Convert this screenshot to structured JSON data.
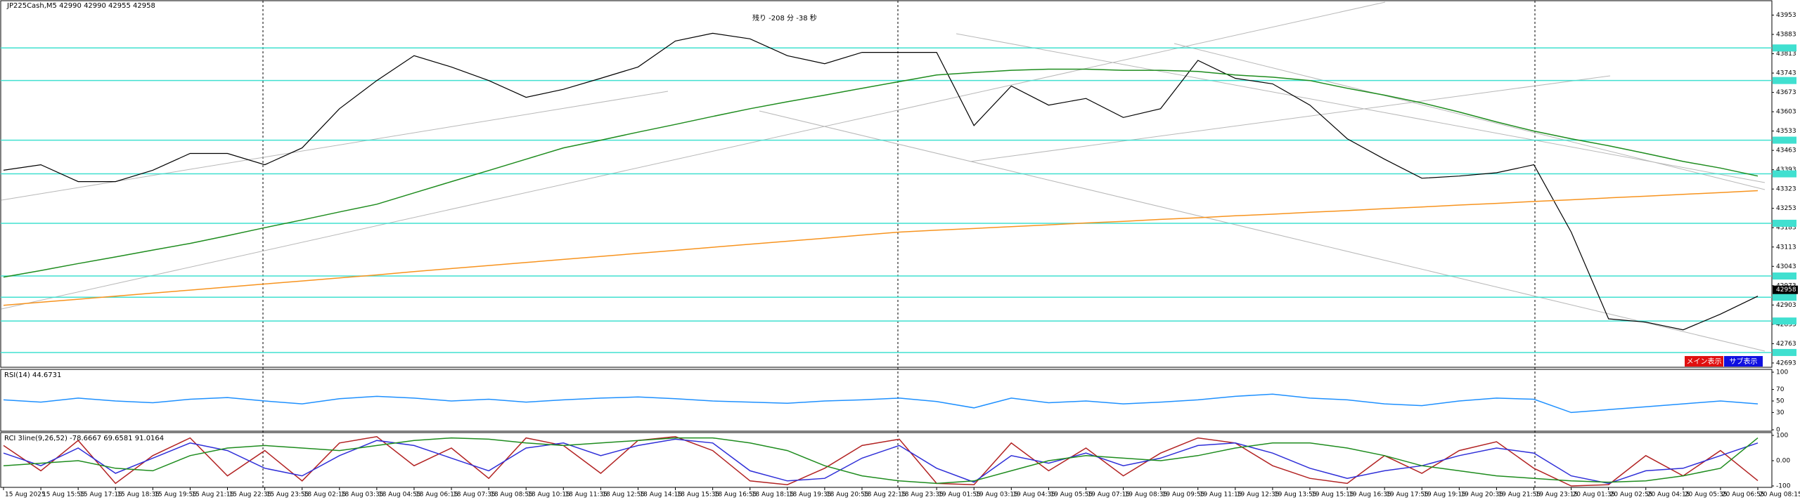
{
  "chart_data": [
    {
      "type": "line",
      "title": "JP225Cash,M5  42990 42990 42955 42958",
      "countdown": "残り -208 分 -38 秒",
      "categories": [
        "15 Aug 2025",
        "15 Aug 15:55",
        "15 Aug 17:15",
        "15 Aug 18:35",
        "15 Aug 19:55",
        "15 Aug 21:15",
        "15 Aug 22:35",
        "15 Aug 23:55",
        "18 Aug 02:15",
        "18 Aug 03:35",
        "18 Aug 04:55",
        "18 Aug 06:15",
        "18 Aug 07:35",
        "18 Aug 08:55",
        "18 Aug 10:15",
        "18 Aug 11:35",
        "18 Aug 12:55",
        "18 Aug 14:15",
        "18 Aug 15:35",
        "18 Aug 16:55",
        "18 Aug 18:15",
        "18 Aug 19:35",
        "18 Aug 20:55",
        "18 Aug 22:15",
        "18 Aug 23:35",
        "19 Aug 01:55",
        "19 Aug 03:15",
        "19 Aug 04:35",
        "19 Aug 05:55",
        "19 Aug 07:15",
        "19 Aug 08:35",
        "19 Aug 09:55",
        "19 Aug 11:15",
        "19 Aug 12:35",
        "19 Aug 13:55",
        "19 Aug 15:15",
        "19 Aug 16:35",
        "19 Aug 17:55",
        "19 Aug 19:15",
        "19 Aug 20:35",
        "19 Aug 21:55",
        "19 Aug 23:15",
        "20 Aug 01:35",
        "20 Aug 02:55",
        "20 Aug 04:15",
        "20 Aug 05:35",
        "20 Aug 06:55",
        "20 Aug 08:15"
      ],
      "series": [
        {
          "color": "#000000",
          "values": [
            43391,
            43411,
            43350,
            43350,
            43391,
            43452,
            43452,
            43411,
            43472,
            43614,
            43716,
            43806,
            43765,
            43716,
            43655,
            43684,
            43724,
            43765,
            43859,
            43887,
            43867,
            43806,
            43777,
            43818,
            43818,
            43818,
            43553,
            43696,
            43627,
            43651,
            43582,
            43614,
            43789,
            43724,
            43704,
            43627,
            43505,
            43431,
            43362,
            43370,
            43382,
            43411,
            43167,
            42853,
            42841,
            42813,
            42870,
            42935
          ]
        },
        {
          "color": "#1e8c1e",
          "values": [
            43004,
            43028,
            43053,
            43077,
            43102,
            43126,
            43154,
            43183,
            43211,
            43240,
            43268,
            43309,
            43350,
            43390,
            43431,
            43472,
            43500,
            43529,
            43557,
            43586,
            43614,
            43639,
            43663,
            43688,
            43712,
            43736,
            43745,
            43753,
            43757,
            43757,
            43753,
            43753,
            43749,
            43736,
            43728,
            43716,
            43688,
            43663,
            43635,
            43602,
            43566,
            43533,
            43505,
            43480,
            43452,
            43423,
            43399,
            43370
          ]
        },
        {
          "color": "#f7931e",
          "values": [
            42902,
            42913,
            42924,
            42935,
            42946,
            42957,
            42968,
            42979,
            42990,
            43001,
            43012,
            43024,
            43035,
            43046,
            43057,
            43068,
            43079,
            43090,
            43101,
            43112,
            43123,
            43134,
            43145,
            43156,
            43167,
            43174,
            43180,
            43187,
            43193,
            43200,
            43206,
            43213,
            43219,
            43226,
            43232,
            43239,
            43245,
            43252,
            43258,
            43265,
            43271,
            43278,
            43284,
            43291,
            43297,
            43304,
            43310,
            43317
          ]
        }
      ],
      "ylim": [
        42680,
        44000
      ],
      "yticks": [
        43953,
        43883,
        43813,
        43743,
        43673,
        43603,
        43533,
        43463,
        43393,
        43323,
        43253,
        43183,
        43113,
        43043,
        42973,
        42903,
        42833,
        42763,
        42693
      ],
      "levels": [
        43834,
        43716,
        43500,
        43378,
        43199,
        43008,
        42931,
        42845,
        42731
      ],
      "level_color": "#40e0d0",
      "last_price": 42958,
      "buttons": [
        "メイン表示",
        "サブ表示"
      ]
    },
    {
      "type": "line",
      "title": "RSI(14) 44.6731",
      "series": [
        {
          "color": "#1e90ff",
          "values": [
            52,
            48,
            55,
            50,
            47,
            53,
            56,
            50,
            45,
            54,
            58,
            55,
            50,
            53,
            48,
            52,
            55,
            57,
            54,
            50,
            48,
            46,
            50,
            52,
            55,
            49,
            38,
            55,
            47,
            50,
            45,
            48,
            52,
            58,
            62,
            55,
            52,
            45,
            42,
            50,
            55,
            53,
            30,
            35,
            40,
            45,
            50,
            45
          ]
        }
      ],
      "ylim": [
        0,
        100
      ],
      "yticks": [
        0,
        30,
        50,
        70,
        100
      ]
    },
    {
      "type": "line",
      "title": "RCI 3line(9,26,52) -78.6667 69.6581 91.0164",
      "series": [
        {
          "color": "#b22222",
          "values": [
            60,
            -40,
            80,
            -90,
            20,
            90,
            -60,
            40,
            -80,
            70,
            95,
            -20,
            50,
            -70,
            90,
            60,
            -50,
            80,
            95,
            40,
            -80,
            -95,
            -30,
            60,
            85,
            -90,
            -95,
            70,
            -40,
            50,
            -60,
            30,
            90,
            70,
            -20,
            -70,
            -90,
            20,
            -50,
            40,
            75,
            -30,
            -100,
            -95,
            20,
            -60,
            40,
            -79
          ]
        },
        {
          "color": "#2f2fd8",
          "values": [
            30,
            -20,
            50,
            -50,
            10,
            70,
            40,
            -30,
            -60,
            20,
            80,
            60,
            10,
            -40,
            50,
            70,
            20,
            60,
            85,
            70,
            -40,
            -80,
            -70,
            10,
            60,
            -30,
            -85,
            20,
            -10,
            30,
            -20,
            10,
            60,
            70,
            30,
            -30,
            -70,
            -40,
            -20,
            20,
            50,
            30,
            -60,
            -90,
            -40,
            -30,
            20,
            70
          ]
        },
        {
          "color": "#1e8c1e",
          "values": [
            -20,
            -10,
            0,
            -30,
            -40,
            20,
            50,
            60,
            50,
            40,
            60,
            80,
            90,
            85,
            70,
            60,
            70,
            80,
            90,
            90,
            70,
            40,
            -20,
            -60,
            -80,
            -90,
            -80,
            -40,
            0,
            20,
            10,
            0,
            20,
            50,
            70,
            70,
            50,
            20,
            -20,
            -40,
            -60,
            -70,
            -80,
            -85,
            -80,
            -60,
            -30,
            90
          ]
        }
      ],
      "ylim": [
        -100,
        100
      ],
      "yticks": [
        -100,
        {
          "value": 0,
          "label": "0.00"
        },
        100
      ]
    }
  ]
}
